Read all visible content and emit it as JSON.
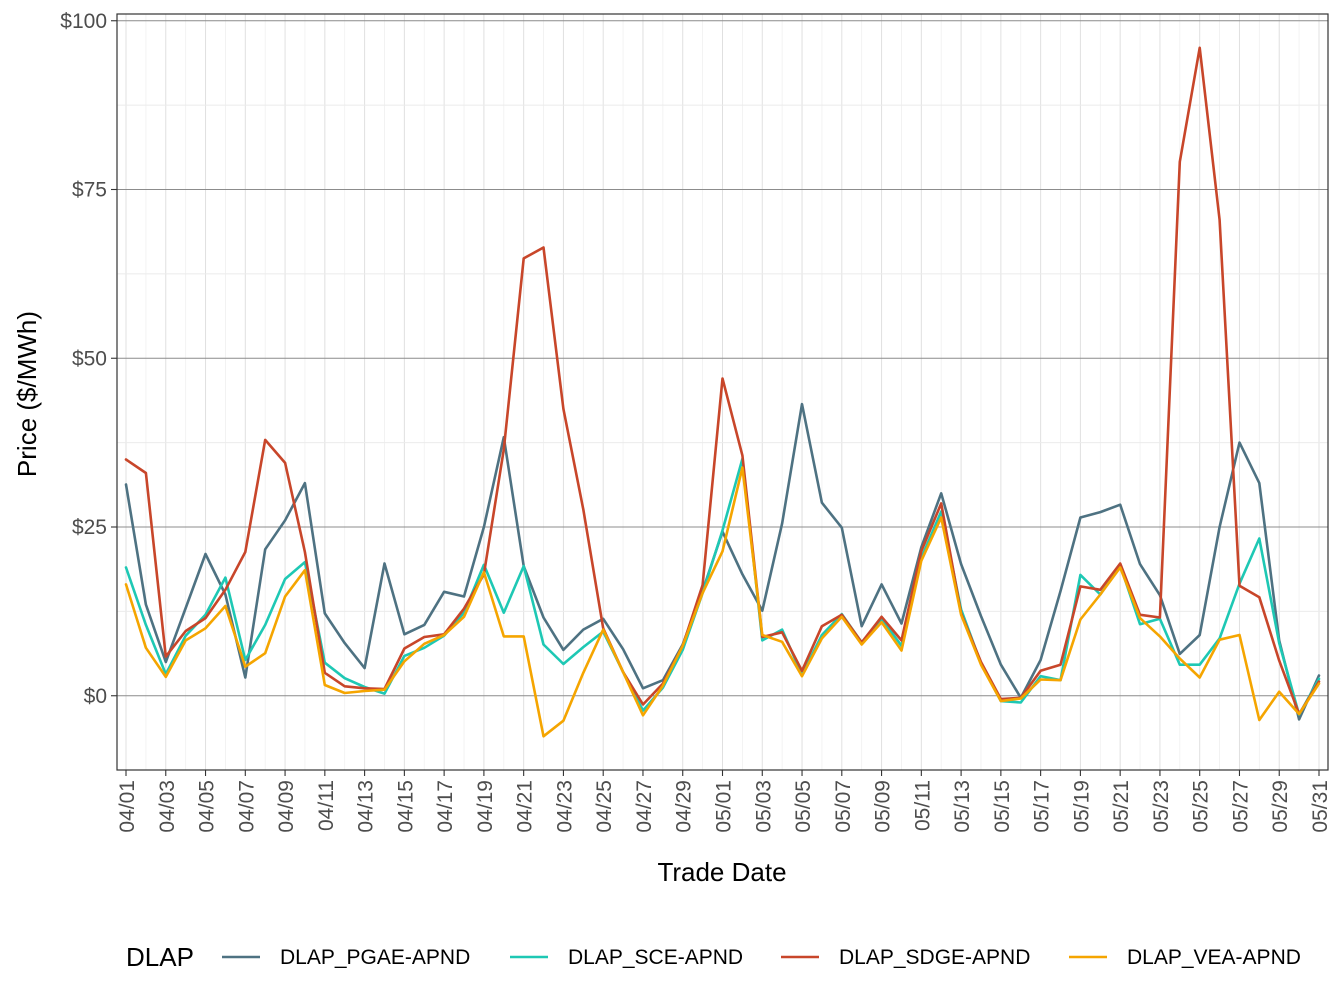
{
  "chart_data": {
    "type": "line",
    "xlabel": "Trade Date",
    "ylabel": "Price ($/MWh)",
    "ylim": [
      -11,
      101
    ],
    "yticks": [
      0,
      25,
      50,
      75,
      100
    ],
    "ytick_labels": [
      "$0",
      "$25",
      "$50",
      "$75",
      "$100"
    ],
    "x": [
      "04/01",
      "04/02",
      "04/03",
      "04/04",
      "04/05",
      "04/06",
      "04/07",
      "04/08",
      "04/09",
      "04/10",
      "04/11",
      "04/12",
      "04/13",
      "04/14",
      "04/15",
      "04/16",
      "04/17",
      "04/18",
      "04/19",
      "04/20",
      "04/21",
      "04/22",
      "04/23",
      "04/24",
      "04/25",
      "04/26",
      "04/27",
      "04/28",
      "04/29",
      "04/30",
      "05/01",
      "05/02",
      "05/03",
      "05/04",
      "05/05",
      "05/06",
      "05/07",
      "05/08",
      "05/09",
      "05/10",
      "05/11",
      "05/12",
      "05/13",
      "05/14",
      "05/15",
      "05/16",
      "05/17",
      "05/18",
      "05/19",
      "05/20",
      "05/21",
      "05/22",
      "05/23",
      "05/24",
      "05/25",
      "05/26",
      "05/27",
      "05/28",
      "05/29",
      "05/30",
      "05/31"
    ],
    "xtick_labels": [
      "04/01",
      "04/03",
      "04/05",
      "04/07",
      "04/09",
      "04/11",
      "04/13",
      "04/15",
      "04/17",
      "04/19",
      "04/21",
      "04/23",
      "04/25",
      "04/27",
      "04/29",
      "05/01",
      "05/03",
      "05/05",
      "05/07",
      "05/09",
      "05/11",
      "05/13",
      "05/15",
      "05/17",
      "05/19",
      "05/21",
      "05/23",
      "05/25",
      "05/27",
      "05/29",
      "05/31"
    ],
    "grid": true,
    "legend": {
      "title": "DLAP",
      "position": "bottom"
    },
    "series": [
      {
        "name": "DLAP_PGAE-APND",
        "color": "#4e7282",
        "values": [
          31.3,
          13.5,
          5.0,
          13.0,
          21.0,
          15.0,
          2.7,
          21.7,
          26.0,
          31.5,
          12.2,
          7.8,
          4.1,
          19.6,
          9.1,
          10.5,
          15.4,
          14.7,
          25.0,
          38.3,
          19.2,
          11.6,
          6.8,
          9.8,
          11.4,
          6.9,
          1.1,
          2.3,
          7.6,
          15.5,
          24.3,
          18.0,
          12.6,
          25.5,
          43.2,
          28.6,
          24.9,
          10.3,
          16.5,
          10.7,
          22.0,
          30.0,
          19.5,
          11.8,
          4.6,
          -0.3,
          5.3,
          15.5,
          26.4,
          27.2,
          28.3,
          19.5,
          14.9,
          6.2,
          9.0,
          25.0,
          37.5,
          31.5,
          8.2,
          -3.5,
          3.0
        ]
      },
      {
        "name": "DLAP_SCE-APND",
        "color": "#1ec8b4",
        "values": [
          19.0,
          10.5,
          3.2,
          8.9,
          12.0,
          17.5,
          5.3,
          10.5,
          17.3,
          19.8,
          4.9,
          2.6,
          1.3,
          0.3,
          5.9,
          7.1,
          8.9,
          12.3,
          19.4,
          12.3,
          19.2,
          7.6,
          4.7,
          7.2,
          9.5,
          3.5,
          -2.2,
          1.2,
          6.8,
          15.2,
          24.5,
          35.1,
          8.2,
          9.8,
          3.1,
          9.0,
          12.1,
          7.9,
          11.4,
          7.4,
          20.4,
          27.3,
          12.8,
          4.8,
          -0.8,
          -1.0,
          2.9,
          2.3,
          17.9,
          15.0,
          19.3,
          10.6,
          11.4,
          4.6,
          4.6,
          8.5,
          16.6,
          23.3,
          7.8,
          -2.8,
          2.5
        ]
      },
      {
        "name": "DLAP_SDGE-APND",
        "color": "#c8462a",
        "values": [
          35.0,
          33.0,
          5.8,
          9.6,
          11.5,
          15.7,
          21.3,
          37.9,
          34.5,
          21.3,
          3.4,
          1.4,
          1.1,
          1.0,
          7.0,
          8.7,
          9.1,
          12.9,
          18.0,
          36.5,
          64.8,
          66.4,
          42.5,
          27.6,
          10.0,
          3.5,
          -1.3,
          1.8,
          7.4,
          16.4,
          47.0,
          35.6,
          8.7,
          9.4,
          3.7,
          10.3,
          12.0,
          7.9,
          11.7,
          8.2,
          21.4,
          28.5,
          12.2,
          5.0,
          -0.5,
          -0.3,
          3.7,
          4.6,
          16.2,
          15.7,
          19.6,
          12.0,
          11.6,
          79.1,
          96.0,
          70.5,
          16.3,
          14.6,
          5.2,
          -2.7,
          2.1
        ]
      },
      {
        "name": "DLAP_VEA-APND",
        "color": "#f5a500",
        "values": [
          16.5,
          7.1,
          2.8,
          8.2,
          10.0,
          13.3,
          4.3,
          6.3,
          14.7,
          18.6,
          1.6,
          0.4,
          0.7,
          0.9,
          5.1,
          7.7,
          9.0,
          11.7,
          18.3,
          8.8,
          8.8,
          -6.0,
          -3.7,
          3.4,
          9.8,
          3.5,
          -2.9,
          1.5,
          7.4,
          15.2,
          21.4,
          33.8,
          9.0,
          8.0,
          2.9,
          8.5,
          11.7,
          7.6,
          10.9,
          6.7,
          20.0,
          26.4,
          12.0,
          4.6,
          -0.8,
          -0.4,
          2.4,
          2.3,
          11.3,
          15.0,
          19.0,
          11.5,
          8.8,
          5.5,
          2.7,
          8.3,
          9.0,
          -3.6,
          0.6,
          -2.7,
          1.8
        ]
      }
    ]
  }
}
